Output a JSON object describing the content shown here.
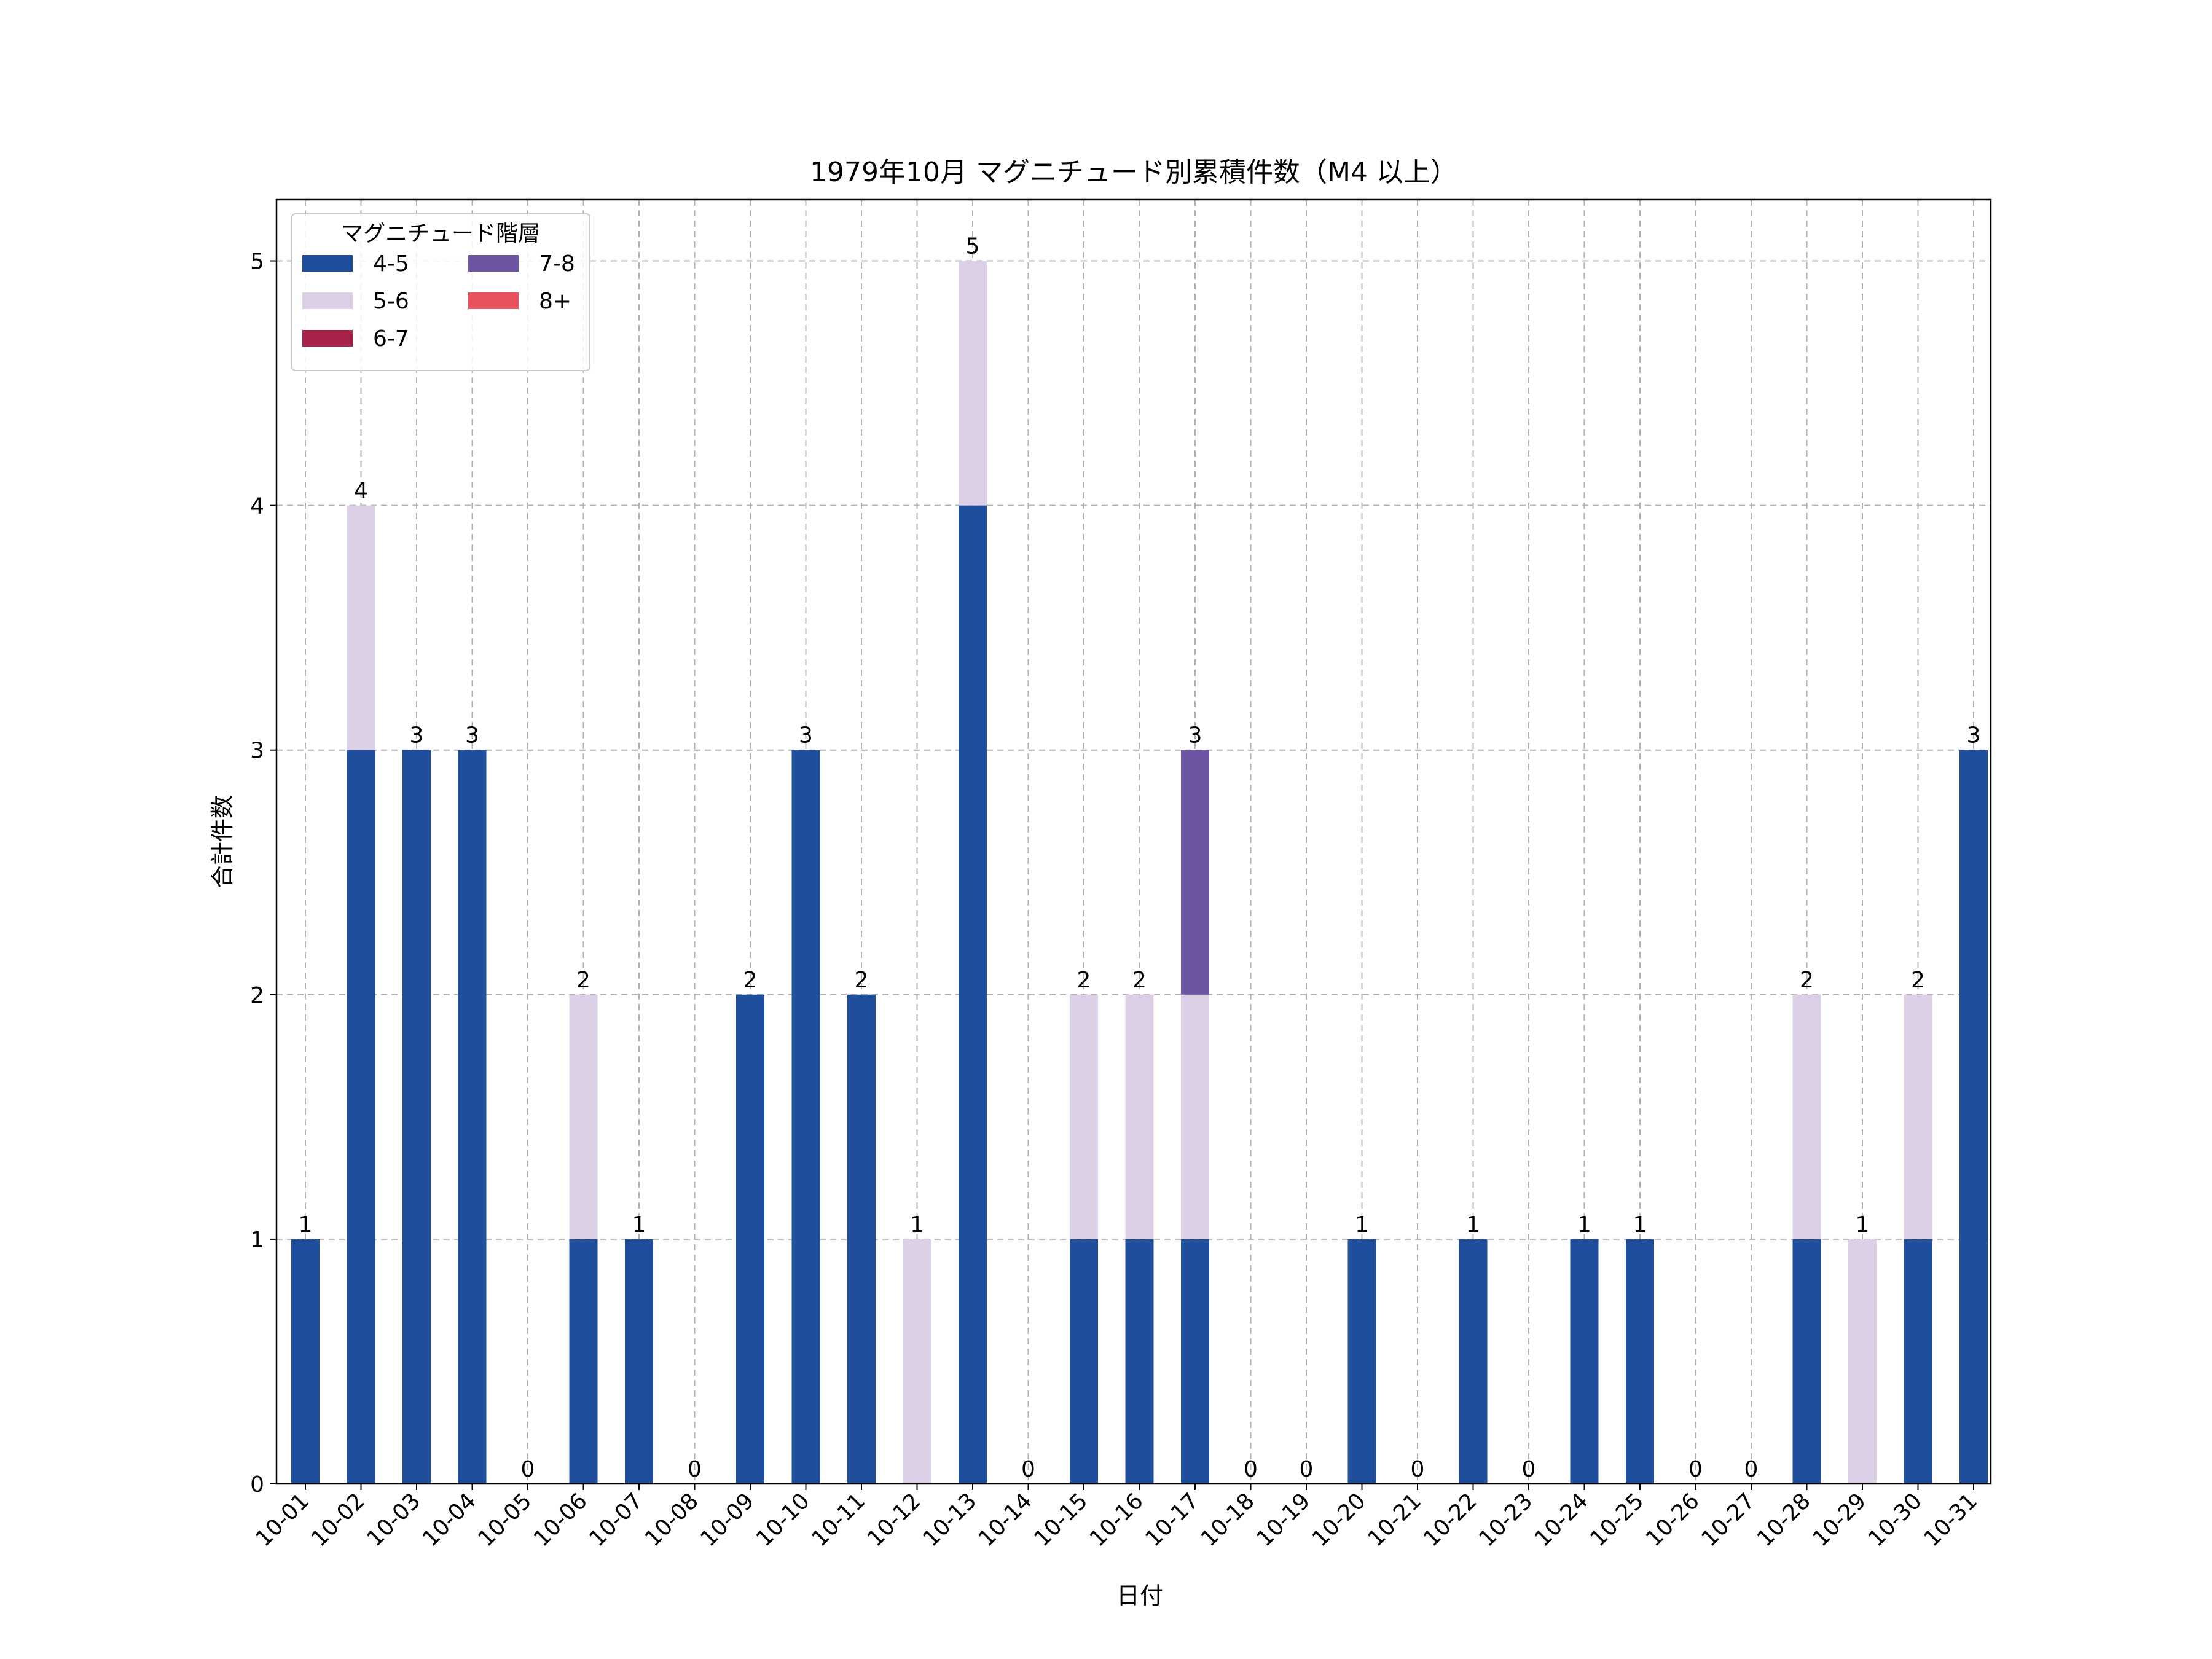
{
  "chart_data": {
    "type": "bar",
    "stacked": true,
    "title": "1979年10月 マグニチュード別累積件数（M4 以上）",
    "xlabel": "日付",
    "ylabel": "合計件数",
    "ylim": [
      0,
      5.25
    ],
    "yticks": [
      0,
      1,
      2,
      3,
      4,
      5
    ],
    "grid": true,
    "legend": {
      "title": "マグニチュード階層",
      "placement": "top-left",
      "columns": 2
    },
    "categories": [
      "10-01",
      "10-02",
      "10-03",
      "10-04",
      "10-05",
      "10-06",
      "10-07",
      "10-08",
      "10-09",
      "10-10",
      "10-11",
      "10-12",
      "10-13",
      "10-14",
      "10-15",
      "10-16",
      "10-17",
      "10-18",
      "10-19",
      "10-20",
      "10-21",
      "10-22",
      "10-23",
      "10-24",
      "10-25",
      "10-26",
      "10-27",
      "10-28",
      "10-29",
      "10-30",
      "10-31"
    ],
    "series": [
      {
        "name": "4-5",
        "color": "#1f4e9c",
        "values": [
          1,
          3,
          3,
          3,
          0,
          1,
          1,
          0,
          2,
          3,
          2,
          0,
          4,
          0,
          1,
          1,
          1,
          0,
          0,
          1,
          0,
          1,
          0,
          1,
          1,
          0,
          0,
          1,
          0,
          1,
          3
        ]
      },
      {
        "name": "5-6",
        "color": "#dcd0e6",
        "values": [
          0,
          1,
          0,
          0,
          0,
          1,
          0,
          0,
          0,
          0,
          0,
          1,
          1,
          0,
          1,
          1,
          1,
          0,
          0,
          0,
          0,
          0,
          0,
          0,
          0,
          0,
          0,
          1,
          1,
          1,
          0
        ]
      },
      {
        "name": "6-7",
        "color": "#a8234a",
        "values": [
          0,
          0,
          0,
          0,
          0,
          0,
          0,
          0,
          0,
          0,
          0,
          0,
          0,
          0,
          0,
          0,
          0,
          0,
          0,
          0,
          0,
          0,
          0,
          0,
          0,
          0,
          0,
          0,
          0,
          0,
          0
        ]
      },
      {
        "name": "7-8",
        "color": "#6e55a3",
        "values": [
          0,
          0,
          0,
          0,
          0,
          0,
          0,
          0,
          0,
          0,
          0,
          0,
          0,
          0,
          0,
          0,
          1,
          0,
          0,
          0,
          0,
          0,
          0,
          0,
          0,
          0,
          0,
          0,
          0,
          0,
          0
        ]
      },
      {
        "name": "8+",
        "color": "#e8525f",
        "values": [
          0,
          0,
          0,
          0,
          0,
          0,
          0,
          0,
          0,
          0,
          0,
          0,
          0,
          0,
          0,
          0,
          0,
          0,
          0,
          0,
          0,
          0,
          0,
          0,
          0,
          0,
          0,
          0,
          0,
          0,
          0
        ]
      }
    ],
    "totals": [
      1,
      4,
      3,
      3,
      0,
      2,
      1,
      0,
      2,
      3,
      2,
      1,
      5,
      0,
      2,
      2,
      3,
      0,
      0,
      1,
      0,
      1,
      0,
      1,
      1,
      0,
      0,
      2,
      1,
      2,
      3
    ]
  }
}
